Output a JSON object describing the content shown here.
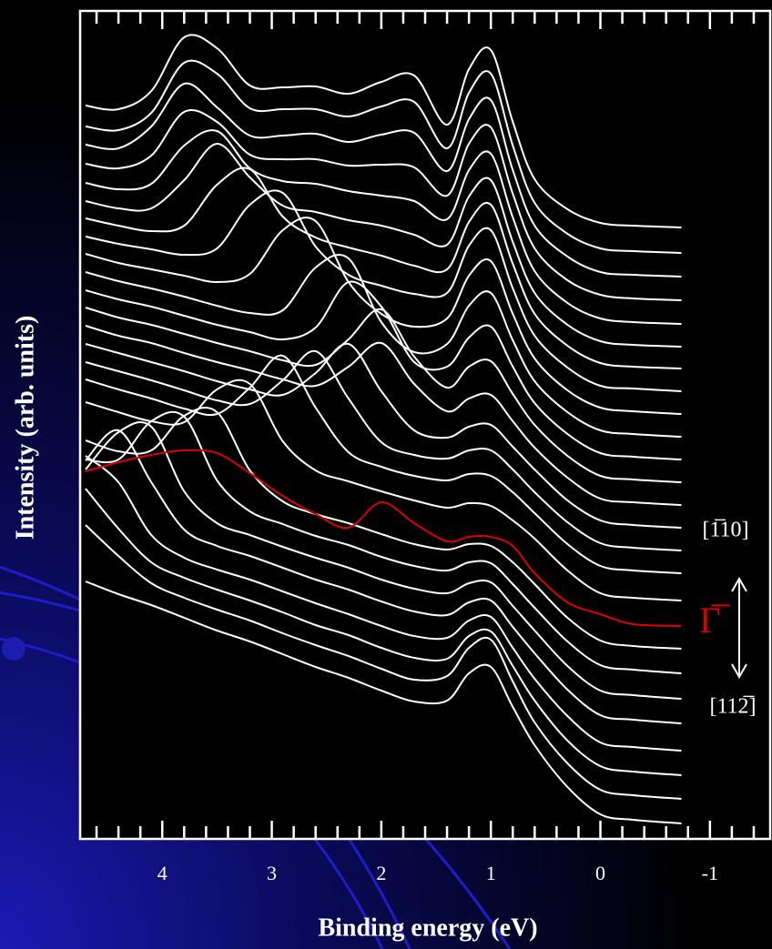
{
  "chart_data": {
    "type": "line",
    "y_label": "Intensity (arb. units)",
    "x_label": "Binding energy (eV)",
    "x": [
      4.7,
      4.4,
      4.1,
      3.8,
      3.5,
      3.2,
      2.9,
      2.6,
      2.3,
      2.0,
      1.7,
      1.4,
      1.2,
      1.0,
      0.8,
      0.6,
      0.3,
      0,
      -0.3,
      -0.74
    ],
    "xlim": [
      4.75,
      -1.55
    ],
    "xticks": [
      4,
      3,
      2,
      1,
      0,
      -1
    ],
    "xminorticks": [
      4.6,
      4.4,
      4.2,
      3.8,
      3.6,
      3.4,
      3.2,
      2.8,
      2.6,
      2.4,
      2.2,
      1.8,
      1.6,
      1.4,
      1.2,
      0.8,
      0.6,
      0.4,
      0.2,
      -0.2,
      -0.4,
      -0.6,
      -0.8,
      -1.2,
      -1.4
    ],
    "ylim": [
      0,
      910
    ],
    "series": [
      {
        "color": "#ffffff",
        "values": [
          806,
          802,
          822,
          881,
          869,
          828,
          826,
          827,
          819,
          832,
          839,
          785,
          846,
          867,
          788,
          725,
          692,
          677,
          674,
          672
        ]
      },
      {
        "color": "#ffffff",
        "values": [
          783,
          779,
          798,
          853,
          841,
          803,
          802,
          802,
          794,
          805,
          810,
          759,
          820,
          841,
          762,
          699,
          665,
          649,
          646,
          644
        ]
      },
      {
        "color": "#ffffff",
        "values": [
          763,
          759,
          783,
          830,
          804,
          773,
          773,
          775,
          766,
          774,
          776,
          734,
          791,
          812,
          735,
          674,
          640,
          623,
          620,
          618
        ]
      },
      {
        "color": "#ffffff",
        "values": [
          742,
          737,
          751,
          799,
          788,
          752,
          747,
          747,
          740,
          741,
          738,
          707,
          764,
          782,
          709,
          649,
          614,
          598,
          594,
          592
        ]
      },
      {
        "color": "#ffffff",
        "values": [
          721,
          714,
          720,
          762,
          778,
          737,
          723,
          720,
          712,
          707,
          701,
          681,
          735,
          753,
          683,
          624,
          589,
          572,
          568,
          566
        ]
      },
      {
        "color": "#ffffff",
        "values": [
          701,
          693,
          693,
          724,
          764,
          727,
          696,
          689,
          680,
          674,
          664,
          653,
          706,
          724,
          656,
          600,
          565,
          547,
          543,
          541
        ]
      },
      {
        "color": "#ffffff",
        "values": [
          682,
          674,
          668,
          674,
          719,
          736,
          684,
          661,
          650,
          641,
          630,
          626,
          678,
          697,
          632,
          577,
          542,
          523,
          519,
          517
        ]
      },
      {
        "color": "#ffffff",
        "values": [
          662,
          654,
          648,
          642,
          649,
          697,
          710,
          651,
          620,
          608,
          599,
          600,
          652,
          669,
          605,
          553,
          518,
          498,
          495,
          492
        ]
      },
      {
        "color": "#ffffff",
        "values": [
          643,
          633,
          626,
          619,
          612,
          621,
          669,
          679,
          612,
          577,
          563,
          572,
          619,
          635,
          577,
          528,
          493,
          474,
          470,
          467
        ]
      },
      {
        "color": "#ffffff",
        "values": [
          623,
          613,
          605,
          596,
          586,
          578,
          581,
          628,
          638,
          568,
          535,
          544,
          586,
          600,
          548,
          503,
          469,
          449,
          445,
          442
        ]
      },
      {
        "color": "#ffffff",
        "values": [
          603,
          593,
          585,
          575,
          565,
          557,
          549,
          562,
          612,
          585,
          524,
          519,
          551,
          563,
          519,
          479,
          445,
          424,
          420,
          417
        ]
      },
      {
        "color": "#ffffff",
        "values": [
          584,
          573,
          565,
          555,
          545,
          536,
          526,
          521,
          549,
          582,
          530,
          496,
          519,
          525,
          489,
          455,
          421,
          399,
          395,
          392
        ]
      },
      {
        "color": "#ffffff",
        "values": [
          564,
          553,
          545,
          534,
          524,
          515,
          505,
          498,
          519,
          545,
          500,
          470,
          484,
          488,
          459,
          430,
          397,
          374,
          370,
          367
        ]
      },
      {
        "color": "#ffffff",
        "values": [
          544,
          534,
          524,
          514,
          503,
          494,
          488,
          512,
          544,
          492,
          449,
          441,
          453,
          455,
          431,
          406,
          372,
          350,
          345,
          342
        ]
      },
      {
        "color": "#ffffff",
        "values": [
          524,
          514,
          504,
          493,
          482,
          478,
          504,
          536,
          484,
          436,
          422,
          418,
          427,
          427,
          406,
          381,
          348,
          325,
          320,
          317
        ]
      },
      {
        "color": "#ffffff",
        "values": [
          505,
          494,
          484,
          473,
          467,
          496,
          531,
          474,
          425,
          409,
          399,
          394,
          401,
          399,
          381,
          358,
          324,
          300,
          295,
          292
        ]
      },
      {
        "color": "#ffffff",
        "values": [
          480,
          469,
          459,
          458,
          494,
          500,
          437,
          405,
          393,
          382,
          372,
          364,
          369,
          366,
          350,
          330,
          295,
          270,
          265,
          262
        ]
      },
      {
        "color": "#dd0000",
        "values": [
          404,
          414,
          422,
          427,
          424,
          402,
          377,
          357,
          342,
          370,
          347,
          327,
          332,
          332,
          322,
          292,
          260,
          247,
          236,
          234
        ]
      },
      {
        "color": "#ffffff",
        "values": [
          438,
          426,
          427,
          465,
          469,
          405,
          371,
          357,
          347,
          335,
          324,
          318,
          324,
          322,
          304,
          280,
          243,
          218,
          212,
          209
        ]
      },
      {
        "color": "#ffffff",
        "values": [
          417,
          417,
          459,
          464,
          394,
          360,
          346,
          333,
          323,
          310,
          300,
          295,
          304,
          303,
          280,
          254,
          217,
          191,
          186,
          182
        ]
      },
      {
        "color": "#ffffff",
        "values": [
          406,
          447,
          453,
          382,
          347,
          334,
          321,
          309,
          298,
          285,
          275,
          270,
          281,
          282,
          256,
          229,
          190,
          163,
          158,
          154
        ]
      },
      {
        "color": "#ffffff",
        "values": [
          416,
          449,
          392,
          340,
          322,
          311,
          298,
          285,
          274,
          261,
          250,
          246,
          260,
          262,
          233,
          204,
          164,
          136,
          131,
          127
        ]
      },
      {
        "color": "#ffffff",
        "values": [
          421,
          392,
          334,
          309,
          296,
          285,
          272,
          259,
          247,
          234,
          223,
          221,
          240,
          244,
          210,
          176,
          135,
          106,
          101,
          97
        ]
      },
      {
        "color": "#ffffff",
        "values": [
          385,
          341,
          304,
          287,
          274,
          262,
          249,
          235,
          224,
          210,
          199,
          198,
          223,
          228,
          190,
          152,
          108,
          80,
          74,
          70
        ]
      },
      {
        "color": "#ffffff",
        "values": [
          345,
          311,
          281,
          265,
          252,
          240,
          226,
          213,
          201,
          187,
          175,
          179,
          210,
          219,
          173,
          128,
          83,
          54,
          48,
          44
        ]
      },
      {
        "color": "#ffffff",
        "values": [
          283,
          269,
          257,
          243,
          229,
          217,
          203,
          189,
          177,
          163,
          151,
          152,
          182,
          189,
          145,
          103,
          57,
          27,
          21,
          17
        ]
      }
    ],
    "annotations": [
      {
        "text": "[1̅10]",
        "color": "#ffffff"
      },
      {
        "text": "Γ̅",
        "color": "#dd0000"
      },
      {
        "text": "[112̅]",
        "color": "#ffffff"
      }
    ]
  }
}
